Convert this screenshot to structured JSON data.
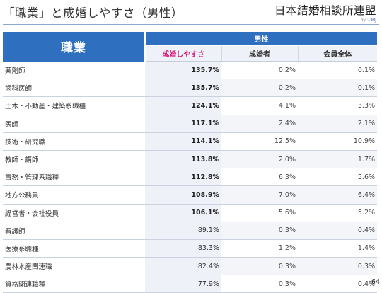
{
  "title": "「職業」と成婚しやすさ（男性）",
  "logo": {
    "main": "日本結婚相談所連盟",
    "by": "by",
    "brand": "IBJ"
  },
  "table": {
    "occupation_header": "職業",
    "group_header": "男性",
    "columns": [
      "成婚しやすさ",
      "成婚者",
      "会員全体"
    ],
    "rows": [
      {
        "occupation": "薬剤師",
        "ease": "135.7%",
        "married": "0.2%",
        "all": "0.1%",
        "bold": true
      },
      {
        "occupation": "歯科医師",
        "ease": "135.7%",
        "married": "0.2%",
        "all": "0.1%",
        "bold": true
      },
      {
        "occupation": "土木・不動産・建築系職種",
        "ease": "124.1%",
        "married": "4.1%",
        "all": "3.3%",
        "bold": true
      },
      {
        "occupation": "医師",
        "ease": "117.1%",
        "married": "2.4%",
        "all": "2.1%",
        "bold": true
      },
      {
        "occupation": "技術・研究職",
        "ease": "114.1%",
        "married": "12.5%",
        "all": "10.9%",
        "bold": true
      },
      {
        "occupation": "教師・講師",
        "ease": "113.8%",
        "married": "2.0%",
        "all": "1.7%",
        "bold": true
      },
      {
        "occupation": "事務・管理系職種",
        "ease": "112.8%",
        "married": "6.3%",
        "all": "5.6%",
        "bold": true
      },
      {
        "occupation": "地方公務員",
        "ease": "108.9%",
        "married": "7.0%",
        "all": "6.4%",
        "bold": true
      },
      {
        "occupation": "経営者・会社役員",
        "ease": "106.1%",
        "married": "5.6%",
        "all": "5.2%",
        "bold": true
      },
      {
        "occupation": "看護師",
        "ease": "89.1%",
        "married": "0.3%",
        "all": "0.4%",
        "bold": false
      },
      {
        "occupation": "医療系職種",
        "ease": "83.3%",
        "married": "1.2%",
        "all": "1.4%",
        "bold": false
      },
      {
        "occupation": "農林水産関連職",
        "ease": "82.4%",
        "married": "0.3%",
        "all": "0.3%",
        "bold": false
      },
      {
        "occupation": "資格関連職種",
        "ease": "77.9%",
        "married": "0.3%",
        "all": "0.4%",
        "bold": false
      }
    ]
  },
  "page_number": "64",
  "colors": {
    "header_blue": "#2f6fbf",
    "ease_pink": "#d6197b",
    "light_band": "#eef2f8"
  }
}
